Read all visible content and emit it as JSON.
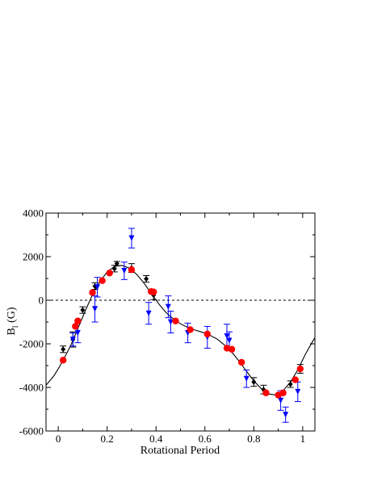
{
  "chart_data": {
    "type": "scatter",
    "xlabel": "Rotational Period",
    "ylabel": "B",
    "ylabel_sub": "l",
    "ylabel_suffix": " (G)",
    "xlim": [
      -0.05,
      1.05
    ],
    "ylim": [
      -6000,
      4000
    ],
    "xticks": [
      0,
      0.2,
      0.4,
      0.6,
      0.8,
      1
    ],
    "xtick_labels": [
      "0",
      "0.2",
      "0.4",
      "0.6",
      "0.8",
      "1"
    ],
    "yticks": [
      -6000,
      -4000,
      -2000,
      0,
      2000,
      4000
    ],
    "ytick_labels": [
      "-6000",
      "-4000",
      "-2000",
      "0",
      "2000",
      "4000"
    ],
    "grid": false,
    "zero_line": {
      "y": 0,
      "style": "dashed"
    },
    "fit_curve": {
      "color": "#000000",
      "points": [
        [
          -0.05,
          -3900
        ],
        [
          -0.02,
          -3500
        ],
        [
          0.0,
          -3150
        ],
        [
          0.02,
          -2750
        ],
        [
          0.05,
          -2100
        ],
        [
          0.08,
          -1300
        ],
        [
          0.11,
          -500
        ],
        [
          0.14,
          250
        ],
        [
          0.17,
          850
        ],
        [
          0.2,
          1300
        ],
        [
          0.23,
          1550
        ],
        [
          0.26,
          1600
        ],
        [
          0.29,
          1480
        ],
        [
          0.32,
          1200
        ],
        [
          0.35,
          800
        ],
        [
          0.38,
          320
        ],
        [
          0.41,
          -150
        ],
        [
          0.44,
          -550
        ],
        [
          0.47,
          -850
        ],
        [
          0.5,
          -1080
        ],
        [
          0.53,
          -1250
        ],
        [
          0.56,
          -1370
        ],
        [
          0.59,
          -1470
        ],
        [
          0.62,
          -1600
        ],
        [
          0.65,
          -1780
        ],
        [
          0.68,
          -2050
        ],
        [
          0.71,
          -2380
        ],
        [
          0.74,
          -2800
        ],
        [
          0.77,
          -3250
        ],
        [
          0.8,
          -3700
        ],
        [
          0.83,
          -4050
        ],
        [
          0.86,
          -4300
        ],
        [
          0.89,
          -4350
        ],
        [
          0.92,
          -4150
        ],
        [
          0.95,
          -3750
        ],
        [
          0.98,
          -3200
        ],
        [
          1.01,
          -2500
        ],
        [
          1.04,
          -1900
        ],
        [
          1.05,
          -1720
        ]
      ]
    },
    "series": [
      {
        "marker": "diamond",
        "color": "#000000",
        "points": [
          {
            "x": 0.02,
            "y": -2250,
            "err": 150
          },
          {
            "x": 0.06,
            "y": -1800,
            "err": 350
          },
          {
            "x": 0.1,
            "y": -450,
            "err": 150
          },
          {
            "x": 0.15,
            "y": 650,
            "err": 150
          },
          {
            "x": 0.23,
            "y": 1450,
            "err": 150
          },
          {
            "x": 0.24,
            "y": 1680,
            "err": 100
          },
          {
            "x": 0.3,
            "y": 1480,
            "err": 200
          },
          {
            "x": 0.36,
            "y": 980,
            "err": 150
          },
          {
            "x": 0.39,
            "y": 230,
            "err": 200
          },
          {
            "x": 0.8,
            "y": -3750,
            "err": 200
          },
          {
            "x": 0.84,
            "y": -4100,
            "err": 200
          },
          {
            "x": 0.95,
            "y": -3850,
            "err": 150
          },
          {
            "x": 0.99,
            "y": -3150,
            "err": 200
          }
        ]
      },
      {
        "marker": "triangle-down",
        "color": "#0000ff",
        "points": [
          {
            "x": 0.06,
            "y": -1800,
            "err": 300
          },
          {
            "x": 0.08,
            "y": -1500,
            "err": 450
          },
          {
            "x": 0.15,
            "y": -400,
            "err": 600
          },
          {
            "x": 0.16,
            "y": 600,
            "err": 450
          },
          {
            "x": 0.27,
            "y": 1350,
            "err": 400
          },
          {
            "x": 0.3,
            "y": 2850,
            "err": 450
          },
          {
            "x": 0.37,
            "y": -600,
            "err": 500
          },
          {
            "x": 0.45,
            "y": -300,
            "err": 500
          },
          {
            "x": 0.46,
            "y": -1000,
            "err": 500
          },
          {
            "x": 0.53,
            "y": -1500,
            "err": 450
          },
          {
            "x": 0.61,
            "y": -1700,
            "err": 500
          },
          {
            "x": 0.69,
            "y": -1650,
            "err": 550
          },
          {
            "x": 0.7,
            "y": -1850,
            "err": 400
          },
          {
            "x": 0.77,
            "y": -3600,
            "err": 400
          },
          {
            "x": 0.91,
            "y": -4600,
            "err": 450
          },
          {
            "x": 0.93,
            "y": -5250,
            "err": 350
          },
          {
            "x": 0.98,
            "y": -4200,
            "err": 450
          }
        ]
      },
      {
        "marker": "circle",
        "color": "#ff0000",
        "points": [
          {
            "x": 0.02,
            "y": -2750
          },
          {
            "x": 0.07,
            "y": -1200
          },
          {
            "x": 0.08,
            "y": -950
          },
          {
            "x": 0.14,
            "y": 350
          },
          {
            "x": 0.18,
            "y": 900
          },
          {
            "x": 0.21,
            "y": 1250
          },
          {
            "x": 0.3,
            "y": 1400
          },
          {
            "x": 0.38,
            "y": 400
          },
          {
            "x": 0.39,
            "y": 380
          },
          {
            "x": 0.48,
            "y": -950
          },
          {
            "x": 0.54,
            "y": -1350
          },
          {
            "x": 0.61,
            "y": -1550
          },
          {
            "x": 0.69,
            "y": -2200
          },
          {
            "x": 0.71,
            "y": -2250
          },
          {
            "x": 0.75,
            "y": -2850
          },
          {
            "x": 0.85,
            "y": -4250
          },
          {
            "x": 0.9,
            "y": -4350
          },
          {
            "x": 0.92,
            "y": -4250
          },
          {
            "x": 0.97,
            "y": -3650
          },
          {
            "x": 0.99,
            "y": -3150
          }
        ]
      }
    ]
  }
}
